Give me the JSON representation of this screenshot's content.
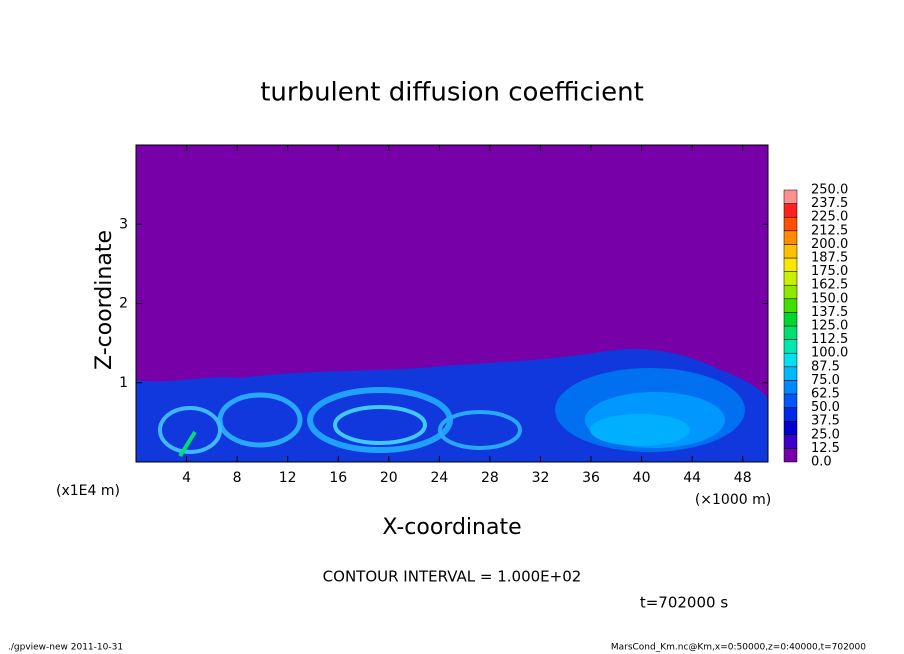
{
  "chart_data": {
    "type": "contour",
    "title": "turbulent diffusion coefficient",
    "x_label": "X-coordinate",
    "y_label": "Z-coordinate",
    "x_unit": "(×1000 m)",
    "y_unit": "(x1E4 m)",
    "xlim": [
      0,
      50
    ],
    "xticks": [
      4,
      8,
      12,
      16,
      20,
      24,
      28,
      32,
      36,
      40,
      44,
      48
    ],
    "ylim": [
      0,
      4
    ],
    "yticks": [
      1,
      2,
      3
    ],
    "colorbar": {
      "levels": [
        {
          "value": 0,
          "label": "0.0"
        },
        {
          "value": 12.5,
          "label": "12.5"
        },
        {
          "value": 25,
          "label": "25.0"
        },
        {
          "value": 37.5,
          "label": "37.5"
        },
        {
          "value": 50,
          "label": "50.0"
        },
        {
          "value": 62.5,
          "label": "62.5"
        },
        {
          "value": 75,
          "label": "75.0"
        },
        {
          "value": 87.5,
          "label": "87.5"
        },
        {
          "value": 100,
          "label": "100.0"
        },
        {
          "value": 112.5,
          "label": "112.5"
        },
        {
          "value": 125,
          "label": "125.0"
        },
        {
          "value": 137.5,
          "label": "137.5"
        },
        {
          "value": 150,
          "label": "150.0"
        },
        {
          "value": 162.5,
          "label": "162.5"
        },
        {
          "value": 175,
          "label": "175.0"
        },
        {
          "value": 187.5,
          "label": "187.5"
        },
        {
          "value": 200,
          "label": "200.0"
        },
        {
          "value": 212.5,
          "label": "212.5"
        },
        {
          "value": 225,
          "label": "225.0"
        },
        {
          "value": 237.5,
          "label": "237.5"
        },
        {
          "value": 250,
          "label": "250.0"
        }
      ],
      "colors": [
        "#7800a8",
        "#3c00c8",
        "#0000d0",
        "#0028e6",
        "#0058fa",
        "#0088ff",
        "#00b8ff",
        "#00e0f0",
        "#00e8b0",
        "#00e070",
        "#00d830",
        "#40e000",
        "#90e800",
        "#c8f000",
        "#f8e800",
        "#ffc000",
        "#ff8c00",
        "#ff5000",
        "#ff2020",
        "#ff9090"
      ]
    },
    "contour_interval": "CONTOUR INTERVAL = 1.000E+02",
    "time_label": "t=702000 s",
    "footer_left": "./gpview-new  2011-10-31",
    "footer_right": "MarsCond_Km.nc@Km,x=0:50000,z=0:40000,t=702000"
  }
}
